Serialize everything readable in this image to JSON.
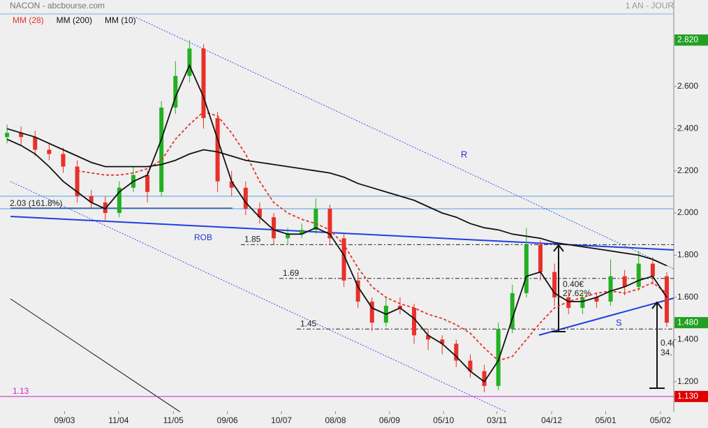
{
  "chart_data": {
    "type": "candlestick",
    "title": "NACON - abcbourse.com",
    "period": "1 AN - JOUR",
    "up_color": "#22b022",
    "down_color": "#e8302a",
    "candles": {
      "open": [
        2.36,
        2.38,
        2.36,
        2.3,
        2.28,
        2.22,
        2.08,
        2.05,
        2.0,
        2.12,
        2.18,
        2.1,
        2.5,
        2.65,
        2.78,
        2.45,
        2.15,
        2.12,
        2.02,
        1.98,
        1.88,
        1.9,
        1.92,
        2.02,
        1.88,
        1.68,
        1.58,
        1.48,
        1.56,
        1.55,
        1.42,
        1.4,
        1.38,
        1.3,
        1.25,
        1.18,
        1.45,
        1.62,
        1.85,
        1.72,
        1.6,
        1.55,
        1.6,
        1.58,
        1.7,
        1.65,
        1.76,
        1.7
      ],
      "high": [
        2.42,
        2.41,
        2.39,
        2.33,
        2.31,
        2.25,
        2.11,
        2.08,
        2.15,
        2.22,
        2.2,
        2.53,
        2.72,
        2.82,
        2.8,
        2.48,
        2.2,
        2.15,
        2.05,
        2.0,
        1.93,
        1.95,
        2.07,
        2.04,
        1.9,
        1.72,
        1.6,
        1.6,
        1.6,
        1.57,
        1.45,
        1.42,
        1.4,
        1.33,
        1.28,
        1.48,
        1.66,
        1.93,
        1.87,
        1.76,
        1.63,
        1.63,
        1.62,
        1.78,
        1.73,
        1.82,
        1.79,
        1.72
      ],
      "low": [
        2.33,
        2.32,
        2.27,
        2.25,
        2.19,
        2.05,
        2.02,
        1.96,
        1.98,
        2.1,
        2.05,
        2.08,
        2.47,
        2.62,
        2.4,
        2.1,
        2.08,
        1.99,
        1.95,
        1.85,
        1.85,
        1.88,
        1.9,
        1.85,
        1.65,
        1.55,
        1.44,
        1.46,
        1.52,
        1.38,
        1.35,
        1.33,
        1.27,
        1.22,
        1.15,
        1.16,
        1.43,
        1.6,
        1.68,
        1.56,
        1.52,
        1.52,
        1.55,
        1.56,
        1.61,
        1.63,
        1.66,
        1.46
      ],
      "close": [
        2.38,
        2.36,
        2.3,
        2.28,
        2.22,
        2.08,
        2.05,
        2.0,
        2.12,
        2.18,
        2.1,
        2.5,
        2.65,
        2.78,
        2.45,
        2.15,
        2.12,
        2.02,
        1.98,
        1.88,
        1.9,
        1.92,
        2.02,
        1.88,
        1.68,
        1.58,
        1.48,
        1.56,
        1.55,
        1.42,
        1.4,
        1.38,
        1.3,
        1.25,
        1.18,
        1.45,
        1.62,
        1.85,
        1.72,
        1.6,
        1.55,
        1.6,
        1.58,
        1.7,
        1.65,
        1.76,
        1.7,
        1.48
      ]
    },
    "series": [
      {
        "name": "MM (28)",
        "color": "#e8302a",
        "dash": true,
        "values": [
          null,
          null,
          null,
          null,
          null,
          2.2,
          2.19,
          2.18,
          2.18,
          2.19,
          2.21,
          2.25,
          2.35,
          2.42,
          2.48,
          2.46,
          2.38,
          2.28,
          2.15,
          2.05,
          2.0,
          1.97,
          1.95,
          1.92,
          1.85,
          1.74,
          1.65,
          1.6,
          1.57,
          1.55,
          1.52,
          1.5,
          1.47,
          1.43,
          1.36,
          1.3,
          1.32,
          1.4,
          1.48,
          1.55,
          1.58,
          1.6,
          1.62,
          1.63,
          1.62,
          1.64,
          1.67,
          1.62
        ]
      },
      {
        "name": "MM (200)",
        "color": "#111111",
        "dash": false,
        "values": [
          2.4,
          2.38,
          2.36,
          2.33,
          2.3,
          2.27,
          2.24,
          2.22,
          2.22,
          2.22,
          2.22,
          2.23,
          2.25,
          2.28,
          2.3,
          2.29,
          2.27,
          2.25,
          2.24,
          2.23,
          2.22,
          2.21,
          2.2,
          2.19,
          2.17,
          2.14,
          2.12,
          2.1,
          2.08,
          2.06,
          2.03,
          2.0,
          1.98,
          1.95,
          1.93,
          1.92,
          1.9,
          1.89,
          1.88,
          1.86,
          1.85,
          1.84,
          1.83,
          1.82,
          1.81,
          1.8,
          1.78,
          1.75
        ]
      },
      {
        "name": "MM (10)",
        "color": "#111111",
        "dash": false,
        "values": [
          2.35,
          2.32,
          2.28,
          2.22,
          2.15,
          2.1,
          2.05,
          2.02,
          2.1,
          2.15,
          2.18,
          2.35,
          2.55,
          2.7,
          2.55,
          2.35,
          2.15,
          2.05,
          1.98,
          1.92,
          1.9,
          1.9,
          1.93,
          1.9,
          1.8,
          1.65,
          1.55,
          1.52,
          1.55,
          1.5,
          1.42,
          1.38,
          1.32,
          1.25,
          1.2,
          1.3,
          1.5,
          1.7,
          1.72,
          1.62,
          1.58,
          1.58,
          1.6,
          1.63,
          1.65,
          1.68,
          1.7,
          1.6
        ]
      }
    ],
    "ylim": [
      1.06,
      3.01
    ],
    "yticks": [
      {
        "value": 2.6,
        "label": "2.600"
      },
      {
        "value": 2.4,
        "label": "2.400"
      },
      {
        "value": 2.2,
        "label": "2.200"
      },
      {
        "value": 2.0,
        "label": "2.000"
      },
      {
        "value": 1.8,
        "label": "1.800"
      },
      {
        "value": 1.6,
        "label": "1.600"
      },
      {
        "value": 1.4,
        "label": "1.400"
      },
      {
        "value": 1.2,
        "label": "1.200"
      }
    ],
    "xlim": [
      0,
      48
    ],
    "xticks": [
      {
        "value": 4.6,
        "label": "09/03"
      },
      {
        "value": 8.45,
        "label": "11/04"
      },
      {
        "value": 12.35,
        "label": "11/05"
      },
      {
        "value": 16.2,
        "label": "09/06"
      },
      {
        "value": 20.05,
        "label": "10/07"
      },
      {
        "value": 23.9,
        "label": "08/08"
      },
      {
        "value": 27.75,
        "label": "06/09"
      },
      {
        "value": 31.6,
        "label": "05/10"
      },
      {
        "value": 35.4,
        "label": "03/11"
      },
      {
        "value": 39.3,
        "label": "04/12"
      },
      {
        "value": 43.15,
        "label": "05/01"
      },
      {
        "value": 47.05,
        "label": "05/02"
      }
    ],
    "price_tags": [
      {
        "value": 2.82,
        "label": "2.820",
        "color": "#22a022"
      },
      {
        "value": 1.48,
        "label": "1.480",
        "color": "#22a022"
      },
      {
        "value": 1.13,
        "label": "1.130",
        "color": "#e00000"
      }
    ],
    "levels": [
      1.85,
      1.69,
      1.45
    ],
    "support_level": 1.13,
    "annotations": {
      "r": "R",
      "rob": "ROB",
      "s": "S",
      "fib": "2.03 (161.8%)",
      "gain1": "0.40€",
      "pct1": "27.62%",
      "gain2": "0.4(",
      "pct2": "34."
    }
  }
}
